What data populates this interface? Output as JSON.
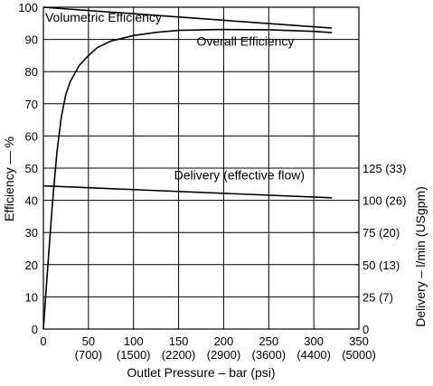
{
  "chart_data": {
    "type": "line",
    "title": "",
    "xlabel": "Outlet Pressure – bar (psi)",
    "ylabel": "Efficiency — %",
    "ylabel_right": "Delivery – l/min (USgpm)",
    "xlim": [
      0,
      350
    ],
    "ylim": [
      0,
      100
    ],
    "grid": true,
    "x_ticks": [
      {
        "value": 0,
        "label": "0",
        "sub": ""
      },
      {
        "value": 50,
        "label": "50",
        "sub": "(700)"
      },
      {
        "value": 100,
        "label": "100",
        "sub": "(1500)"
      },
      {
        "value": 150,
        "label": "150",
        "sub": "(2200)"
      },
      {
        "value": 200,
        "label": "200",
        "sub": "(2900)"
      },
      {
        "value": 250,
        "label": "250",
        "sub": "(3600)"
      },
      {
        "value": 300,
        "label": "300",
        "sub": "(4400)"
      },
      {
        "value": 350,
        "label": "350",
        "sub": "(5000)"
      }
    ],
    "y_ticks": [
      "0",
      "10",
      "20",
      "30",
      "40",
      "50",
      "60",
      "70",
      "80",
      "90",
      "100"
    ],
    "right_ticks": [
      {
        "value": 0,
        "label": "0"
      },
      {
        "value": 25,
        "label": "25 (7)"
      },
      {
        "value": 50,
        "label": "50 (13)"
      },
      {
        "value": 75,
        "label": "75 (20)"
      },
      {
        "value": 100,
        "label": "100 (26)"
      },
      {
        "value": 125,
        "label": "125 (33)"
      }
    ],
    "right_axis_note": "delivery values 0–125 l/min aligned with efficiency 0–49 % gridlines",
    "series": [
      {
        "name": "Volumetric Efficiency",
        "x": [
          0,
          320
        ],
        "y": [
          100,
          93.5
        ]
      },
      {
        "name": "Overall Efficiency",
        "x": [
          0,
          5,
          10,
          15,
          20,
          25,
          30,
          40,
          50,
          60,
          75,
          100,
          125,
          150,
          200,
          250,
          300,
          320
        ],
        "y": [
          0,
          20,
          39,
          55,
          66,
          73,
          77,
          82,
          85,
          87.5,
          89.5,
          91.2,
          92.2,
          92.8,
          93.1,
          93,
          92.5,
          92.1
        ]
      },
      {
        "name": "Delivery (effective flow)",
        "x": [
          0,
          320
        ],
        "y": [
          44.5,
          40.8
        ]
      }
    ],
    "annotations": [
      {
        "text": "Volumetric Efficiency",
        "x": 2,
        "y": 95.5
      },
      {
        "text": "Overall  Efficiency",
        "x": 170,
        "y": 88
      },
      {
        "text": "Delivery (effective flow)",
        "x": 145,
        "y": 46.5
      }
    ]
  }
}
